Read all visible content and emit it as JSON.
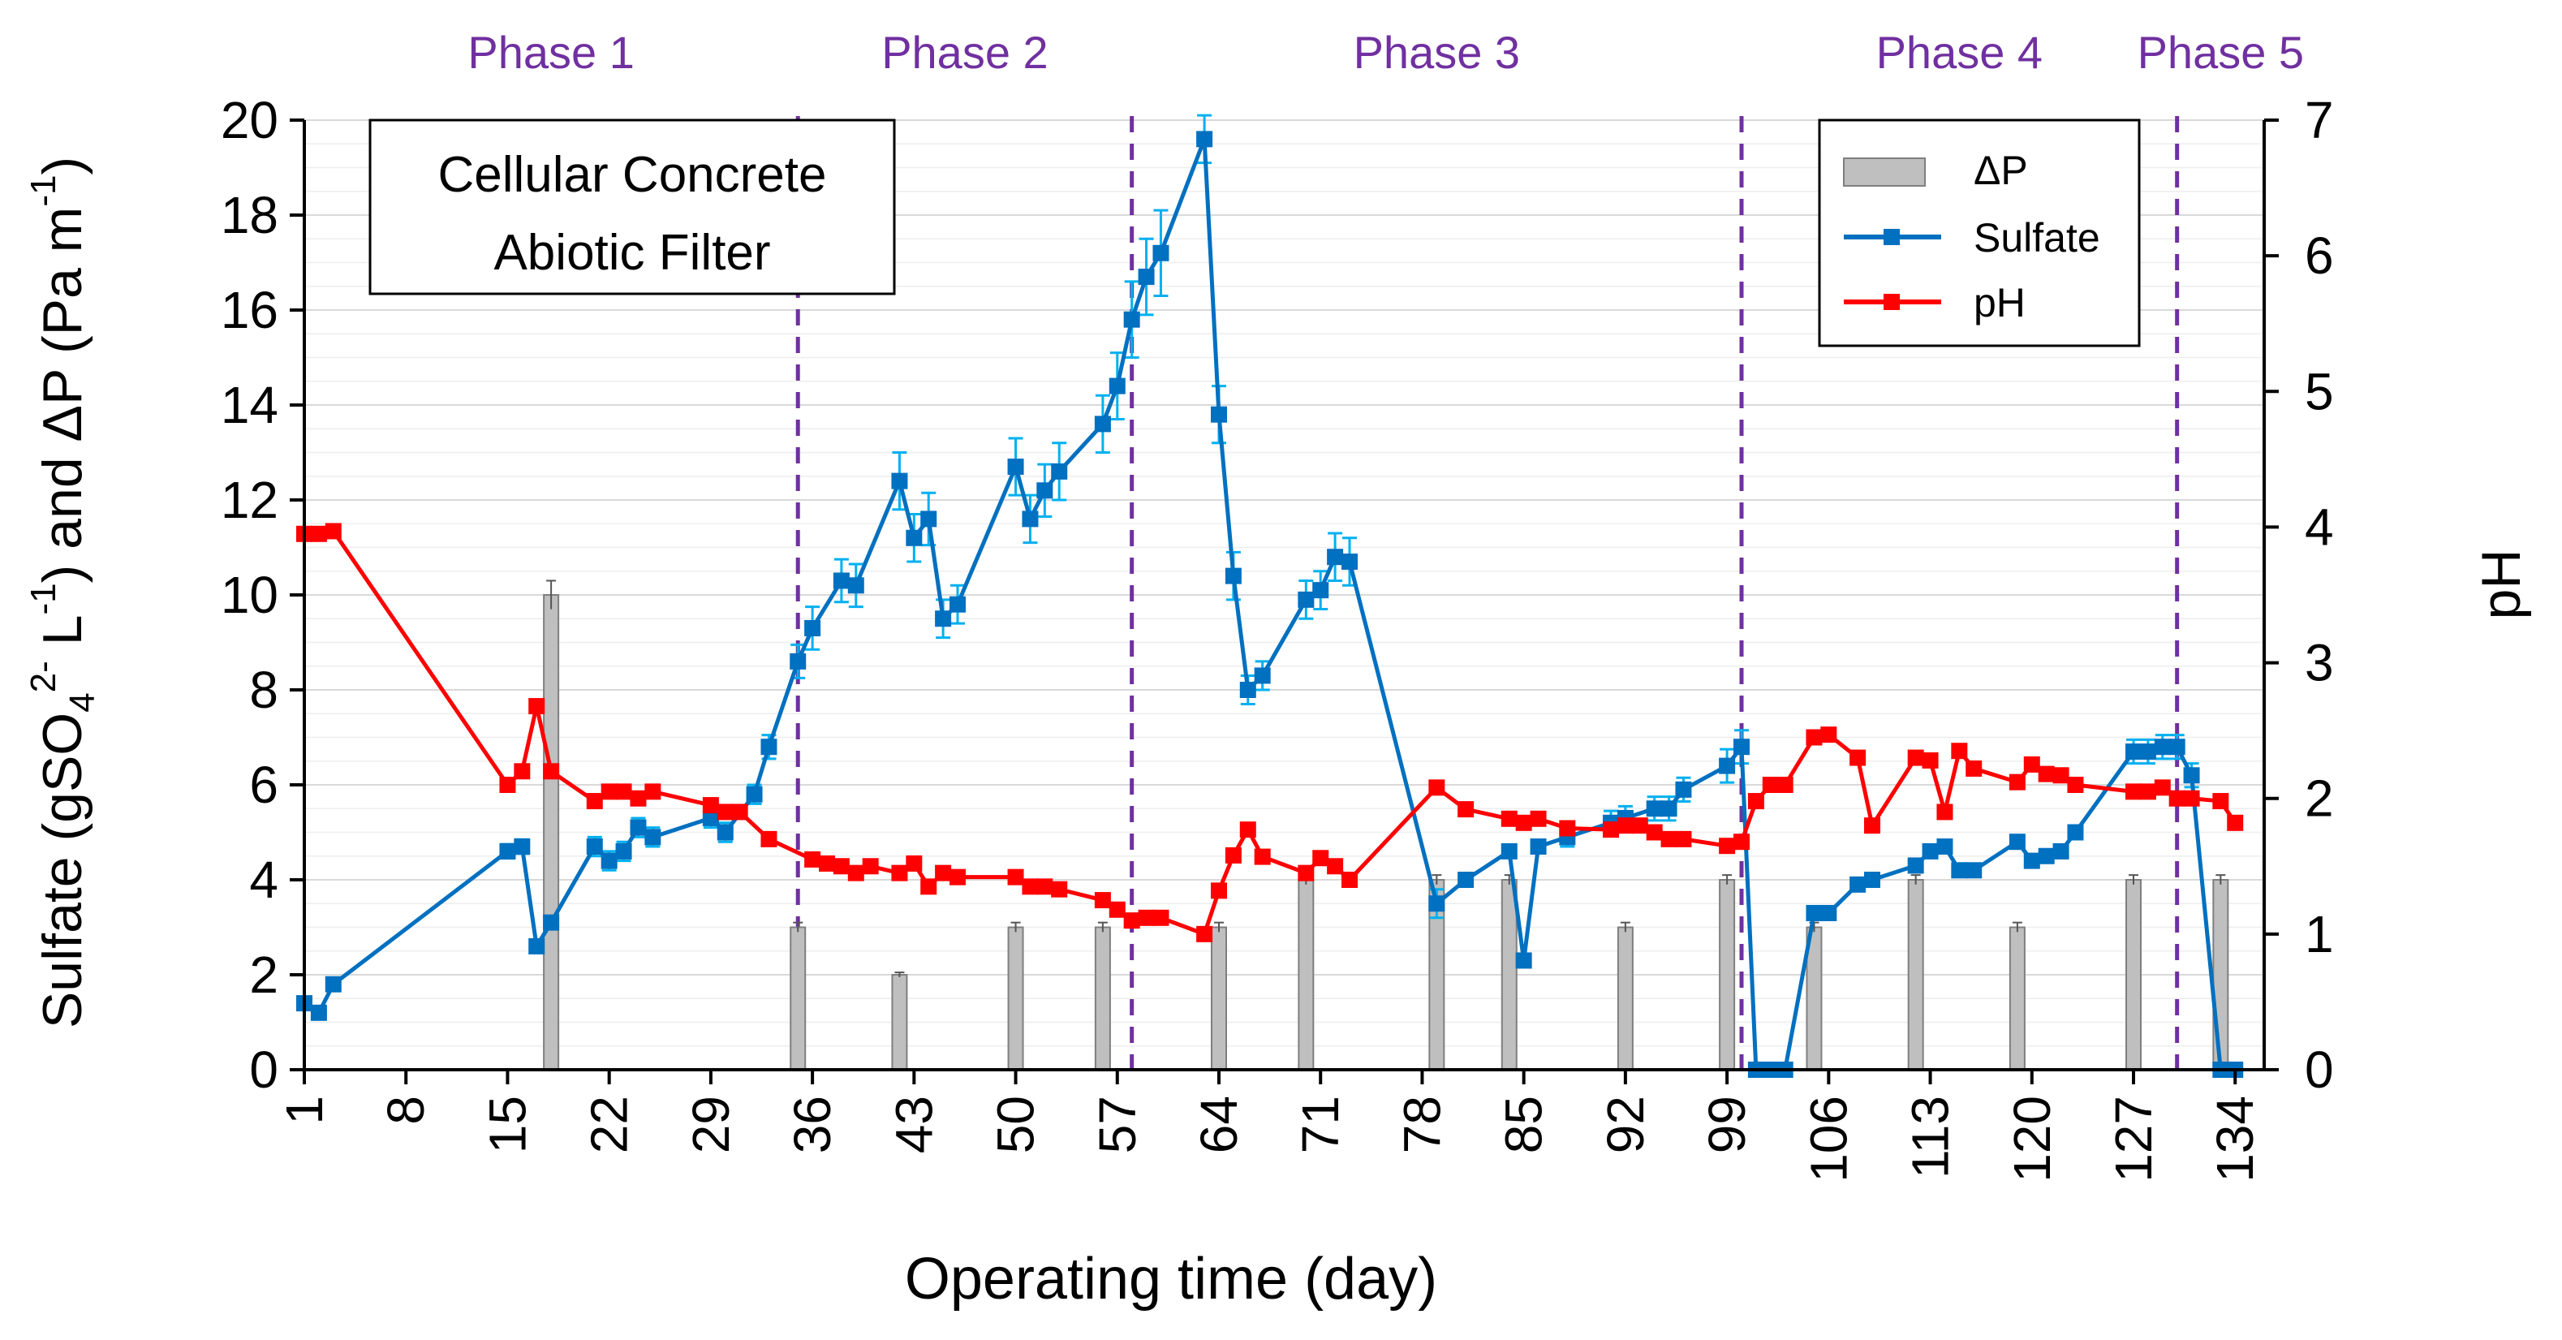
{
  "chart_data": {
    "type": "bar+line",
    "title": "Cellular Concrete Abiotic Filter",
    "title_lines": [
      "Cellular Concrete",
      "Abiotic Filter"
    ],
    "xlabel": "Operating time (day)",
    "ylabel_left": "Sulfate (gSO4 2- L-1) and ΔP (Pa m-1)",
    "ylabel_parts": {
      "a": "Sulfate (gSO",
      "sub": "4",
      "sup1": "2-",
      "b": " L",
      "sup2": "-1",
      "c": ") and ΔP (Pa m",
      "sup3": "-1",
      "d": ")"
    },
    "ylabel_right": "pH",
    "xlim": [
      1,
      136
    ],
    "ylim_left": [
      0,
      20
    ],
    "ylim_right": [
      0,
      7
    ],
    "x_ticks": [
      1,
      8,
      15,
      22,
      29,
      36,
      43,
      50,
      57,
      64,
      71,
      78,
      85,
      92,
      99,
      106,
      113,
      120,
      127,
      134
    ],
    "y_left_ticks": [
      0,
      2,
      4,
      6,
      8,
      10,
      12,
      14,
      16,
      18,
      20
    ],
    "y_right_ticks": [
      0,
      1,
      2,
      3,
      4,
      5,
      6,
      7
    ],
    "legend": {
      "position": "top-right",
      "entries": [
        "ΔP",
        "Sulfate",
        "pH"
      ]
    },
    "colors": {
      "deltaP": "#bfbfbf",
      "deltaP_edge": "#7f7f7f",
      "sulfate": "#0070c0",
      "sulfate_err": "#00b0f0",
      "pH": "#ff0000",
      "phase": "#7030a0",
      "grid": "#d9d9d9"
    },
    "phases": [
      {
        "label": "Phase 1",
        "start": 1,
        "end": 35
      },
      {
        "label": "Phase 2",
        "start": 35,
        "end": 58
      },
      {
        "label": "Phase 3",
        "start": 58,
        "end": 100
      },
      {
        "label": "Phase 4",
        "start": 100,
        "end": 130
      },
      {
        "label": "Phase 5",
        "start": 130,
        "end": 136
      }
    ],
    "phase_boundaries": [
      35,
      58,
      100,
      130
    ],
    "series": [
      {
        "name": "ΔP",
        "type": "bar",
        "axis": "left",
        "x": [
          18,
          35,
          42,
          50,
          56,
          64,
          70,
          79,
          84,
          92,
          99,
          105,
          112,
          119,
          127,
          133
        ],
        "values": [
          10,
          3,
          2,
          3,
          3,
          3,
          4,
          4,
          4,
          3,
          4,
          3,
          4,
          3,
          4,
          4
        ],
        "errors": [
          0.3,
          0.1,
          0.05,
          0.1,
          0.1,
          0.1,
          0.1,
          0.1,
          0.1,
          0.1,
          0.1,
          0.1,
          0.1,
          0.1,
          0.1,
          0.1
        ]
      },
      {
        "name": "Sulfate",
        "type": "line",
        "axis": "left",
        "x": [
          1,
          2,
          3,
          15,
          16,
          17,
          18,
          21,
          22,
          23,
          24,
          25,
          29,
          30,
          32,
          33,
          35,
          36,
          38,
          39,
          42,
          43,
          44,
          45,
          46,
          50,
          51,
          52,
          53,
          56,
          57,
          58,
          59,
          60,
          63,
          64,
          65,
          66,
          67,
          70,
          71,
          72,
          73,
          79,
          81,
          84,
          85,
          86,
          88,
          91,
          92,
          94,
          95,
          96,
          99,
          100,
          101,
          102,
          103,
          105,
          106,
          108,
          109,
          112,
          113,
          114,
          115,
          116,
          119,
          120,
          121,
          122,
          123,
          127,
          128,
          129,
          130,
          131,
          133,
          134
        ],
        "values": [
          1.4,
          1.2,
          1.8,
          4.6,
          4.7,
          2.6,
          3.1,
          4.7,
          4.4,
          4.6,
          5.1,
          4.9,
          5.3,
          5.0,
          5.8,
          6.8,
          8.6,
          9.3,
          10.3,
          10.2,
          12.4,
          11.2,
          11.6,
          9.5,
          9.8,
          12.7,
          11.6,
          12.2,
          12.6,
          13.6,
          14.4,
          15.8,
          16.7,
          17.2,
          19.6,
          13.8,
          10.4,
          8.0,
          8.3,
          9.9,
          10.1,
          10.8,
          10.7,
          3.5,
          4.0,
          4.6,
          2.3,
          4.7,
          4.9,
          5.2,
          5.3,
          5.5,
          5.5,
          5.9,
          6.4,
          6.8,
          0.0,
          0.0,
          0.0,
          3.3,
          3.3,
          3.9,
          4.0,
          4.3,
          4.6,
          4.7,
          4.2,
          4.2,
          4.8,
          4.4,
          4.5,
          4.6,
          5.0,
          6.7,
          6.7,
          6.8,
          6.8,
          6.2,
          0.0,
          0.0
        ],
        "errors": [
          0.1,
          0.1,
          0.1,
          0.15,
          0.15,
          0.1,
          0.1,
          0.2,
          0.2,
          0.2,
          0.2,
          0.2,
          0.2,
          0.2,
          0.2,
          0.25,
          0.35,
          0.45,
          0.45,
          0.45,
          0.6,
          0.5,
          0.55,
          0.4,
          0.4,
          0.6,
          0.5,
          0.55,
          0.6,
          0.6,
          0.7,
          0.8,
          0.8,
          0.9,
          0.5,
          0.6,
          0.5,
          0.3,
          0.3,
          0.4,
          0.4,
          0.5,
          0.5,
          0.3,
          0.1,
          0.1,
          0.1,
          0.1,
          0.2,
          0.25,
          0.25,
          0.25,
          0.25,
          0.25,
          0.35,
          0.35,
          0.05,
          0.05,
          0.05,
          0.1,
          0.1,
          0.1,
          0.1,
          0.1,
          0.1,
          0.1,
          0.1,
          0.1,
          0.1,
          0.1,
          0.1,
          0.1,
          0.1,
          0.25,
          0.25,
          0.25,
          0.25,
          0.25,
          0.05,
          0.05
        ]
      },
      {
        "name": "pH",
        "type": "line",
        "axis": "right",
        "x": [
          1,
          2,
          3,
          15,
          16,
          17,
          18,
          21,
          22,
          23,
          24,
          25,
          29,
          30,
          31,
          33,
          36,
          37,
          38,
          39,
          40,
          42,
          43,
          44,
          45,
          46,
          50,
          51,
          52,
          53,
          56,
          57,
          58,
          59,
          60,
          63,
          64,
          65,
          66,
          67,
          70,
          71,
          72,
          73,
          79,
          81,
          84,
          85,
          86,
          88,
          91,
          92,
          93,
          94,
          95,
          96,
          99,
          100,
          101,
          102,
          103,
          105,
          106,
          108,
          109,
          112,
          113,
          114,
          115,
          116,
          119,
          120,
          121,
          122,
          123,
          127,
          128,
          129,
          130,
          131,
          133,
          134
        ],
        "values": [
          3.95,
          3.95,
          3.97,
          2.1,
          2.2,
          2.68,
          2.2,
          1.98,
          2.05,
          2.05,
          2.0,
          2.05,
          1.95,
          1.9,
          1.9,
          1.7,
          1.55,
          1.52,
          1.5,
          1.45,
          1.5,
          1.45,
          1.52,
          1.35,
          1.45,
          1.42,
          1.42,
          1.35,
          1.35,
          1.33,
          1.25,
          1.18,
          1.1,
          1.12,
          1.12,
          1.0,
          1.32,
          1.58,
          1.77,
          1.57,
          1.45,
          1.56,
          1.5,
          1.4,
          2.08,
          1.92,
          1.85,
          1.82,
          1.85,
          1.78,
          1.77,
          1.8,
          1.8,
          1.75,
          1.7,
          1.7,
          1.65,
          1.68,
          1.98,
          2.1,
          2.1,
          2.45,
          2.47,
          2.3,
          1.8,
          2.3,
          2.28,
          1.9,
          2.35,
          2.22,
          2.12,
          2.25,
          2.18,
          2.17,
          2.1,
          2.05,
          2.05,
          2.08,
          2.0,
          2.0,
          1.98,
          1.82
        ]
      }
    ]
  }
}
